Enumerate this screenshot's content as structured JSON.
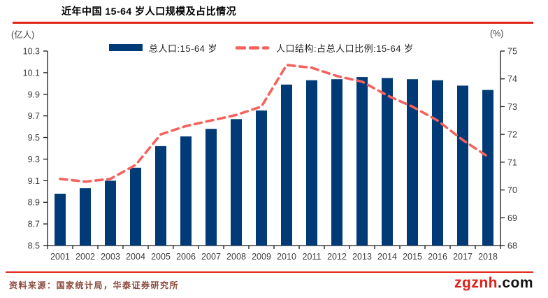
{
  "page": {
    "title": "近年中国 15-64 岁人口规模及占比情况",
    "source": "资料来源：国家统计局，华泰证券研究所",
    "watermark": {
      "brand": "zgznh",
      "suffix": ".com"
    }
  },
  "legend": {
    "bar_label": "总人口:15-64 岁",
    "line_label": "人口结构:占总人口比例:15-64 岁"
  },
  "colors": {
    "bar": "#003b78",
    "line": "#f4635e",
    "rule_red": "#e0261a",
    "source_text": "#8b4a3d",
    "watermark_red": "#e01e17",
    "ink": "#1a1a1a",
    "label": "#3d3d3d"
  },
  "chart_data": {
    "type": "bar",
    "title": "近年中国 15-64 岁人口规模及占比情况",
    "categories": [
      "2001",
      "2002",
      "2003",
      "2004",
      "2005",
      "2006",
      "2007",
      "2008",
      "2009",
      "2010",
      "2011",
      "2012",
      "2013",
      "2014",
      "2015",
      "2016",
      "2017",
      "2018"
    ],
    "series": [
      {
        "name": "总人口:15-64 岁",
        "type": "bar",
        "axis": "left",
        "unit": "亿人",
        "values": [
          8.98,
          9.03,
          9.1,
          9.22,
          9.42,
          9.51,
          9.58,
          9.67,
          9.75,
          9.99,
          10.03,
          10.04,
          10.06,
          10.05,
          10.04,
          10.03,
          9.98,
          9.94
        ]
      },
      {
        "name": "人口结构:占总人口比例:15-64 岁",
        "type": "line-dashed",
        "axis": "right",
        "unit": "%",
        "values": [
          70.4,
          70.3,
          70.4,
          70.9,
          72.0,
          72.3,
          72.5,
          72.7,
          73.0,
          74.5,
          74.4,
          74.1,
          73.9,
          73.4,
          73.0,
          72.5,
          71.8,
          71.2
        ]
      }
    ],
    "left_axis": {
      "label": "(亿人)",
      "min": 8.5,
      "max": 10.3,
      "step": 0.2
    },
    "right_axis": {
      "label": "(%)",
      "min": 68,
      "max": 75,
      "step": 1
    },
    "xlabel": "",
    "ylabel": "",
    "grid": false,
    "legend_position": "top"
  }
}
